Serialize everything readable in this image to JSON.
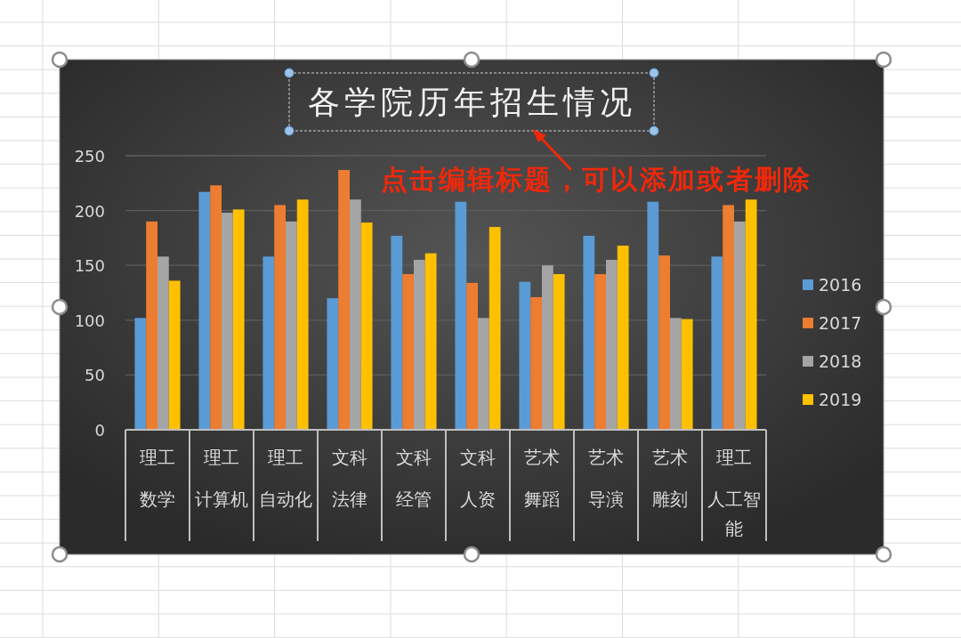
{
  "chart_data": {
    "type": "bar",
    "title": "各学院历年招生情况",
    "annotations": [
      "点击编辑标题，可以添加或者删除"
    ],
    "categories": [
      "理工数学",
      "理工计算机",
      "理工自动化",
      "文科法律",
      "文科经管",
      "文科人资",
      "艺术舞蹈",
      "艺术导演",
      "艺术雕刻",
      "理工人工智能"
    ],
    "series": [
      {
        "name": "2016",
        "color": "#5b9bd5",
        "values": [
          102,
          217,
          158,
          120,
          177,
          208,
          135,
          177,
          208,
          158
        ]
      },
      {
        "name": "2017",
        "color": "#ed7d31",
        "values": [
          190,
          223,
          205,
          237,
          142,
          134,
          121,
          142,
          159,
          205
        ]
      },
      {
        "name": "2018",
        "color": "#a5a5a5",
        "values": [
          158,
          198,
          190,
          210,
          155,
          102,
          150,
          155,
          102,
          190
        ]
      },
      {
        "name": "2019",
        "color": "#ffc000",
        "values": [
          136,
          201,
          210,
          189,
          161,
          185,
          142,
          168,
          101,
          210
        ]
      }
    ],
    "ylim": [
      0,
      250
    ],
    "yticks": [
      0,
      50,
      100,
      150,
      200,
      250
    ],
    "grid": "y",
    "legend": "right"
  }
}
